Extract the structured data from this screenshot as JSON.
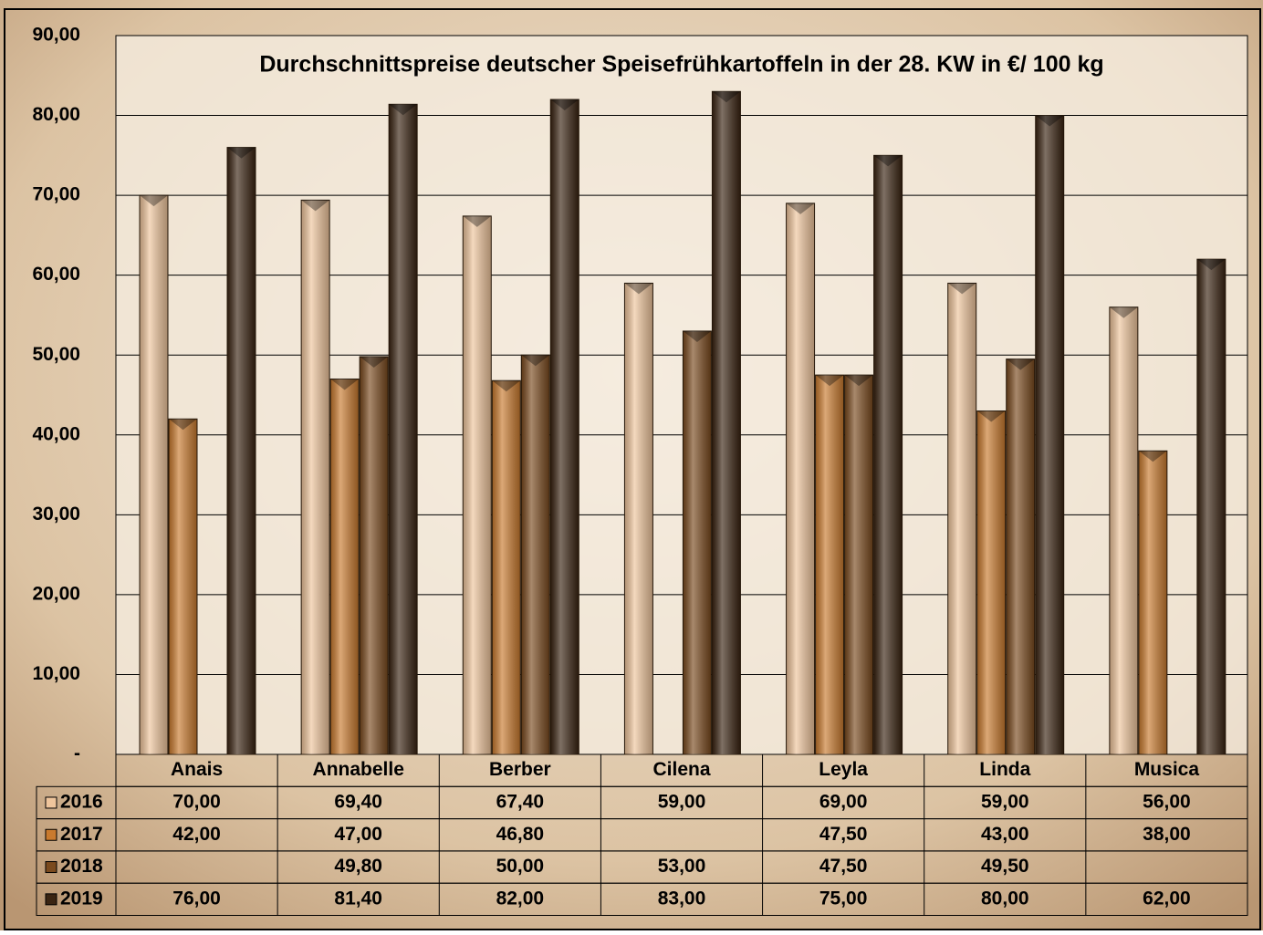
{
  "chart_data": {
    "type": "bar",
    "title": "Durchschnittspreise deutscher Speisefrühkartoffeln in der 28. KW  in €/ 100 kg",
    "categories": [
      "Anais",
      "Annabelle",
      "Berber",
      "Cilena",
      "Leyla",
      "Linda",
      "Musica"
    ],
    "series": [
      {
        "name": "2016",
        "color": "#efc59c",
        "values": [
          70.0,
          69.4,
          67.4,
          59.0,
          69.0,
          59.0,
          56.0
        ],
        "value_labels": [
          "70,00",
          "69,40",
          "67,40",
          "59,00",
          "69,00",
          "59,00",
          "56,00"
        ]
      },
      {
        "name": "2017",
        "color": "#c97a2e",
        "values": [
          42.0,
          47.0,
          46.8,
          null,
          47.5,
          43.0,
          38.0
        ],
        "value_labels": [
          "42,00",
          "47,00",
          "46,80",
          null,
          "47,50",
          "43,00",
          "38,00"
        ]
      },
      {
        "name": "2018",
        "color": "#7a4a1e",
        "values": [
          null,
          49.8,
          50.0,
          53.0,
          47.5,
          49.5,
          null
        ],
        "value_labels": [
          null,
          "49,80",
          "50,00",
          "53,00",
          "47,50",
          "49,50",
          null
        ]
      },
      {
        "name": "2019",
        "color": "#3a2412",
        "values": [
          76.0,
          81.4,
          82.0,
          83.0,
          75.0,
          80.0,
          62.0
        ],
        "value_labels": [
          "76,00",
          "81,40",
          "82,00",
          "83,00",
          "75,00",
          "80,00",
          "62,00"
        ]
      }
    ],
    "ylim": [
      0,
      90
    ],
    "yticks": [
      {
        "value": 0,
        "label": "-"
      },
      {
        "value": 10,
        "label": "10,00"
      },
      {
        "value": 20,
        "label": "20,00"
      },
      {
        "value": 30,
        "label": "30,00"
      },
      {
        "value": 40,
        "label": "40,00"
      },
      {
        "value": 50,
        "label": "50,00"
      },
      {
        "value": 60,
        "label": "60,00"
      },
      {
        "value": 70,
        "label": "70,00"
      },
      {
        "value": 80,
        "label": "80,00"
      },
      {
        "value": 90,
        "label": "90,00"
      }
    ],
    "grid": true
  }
}
